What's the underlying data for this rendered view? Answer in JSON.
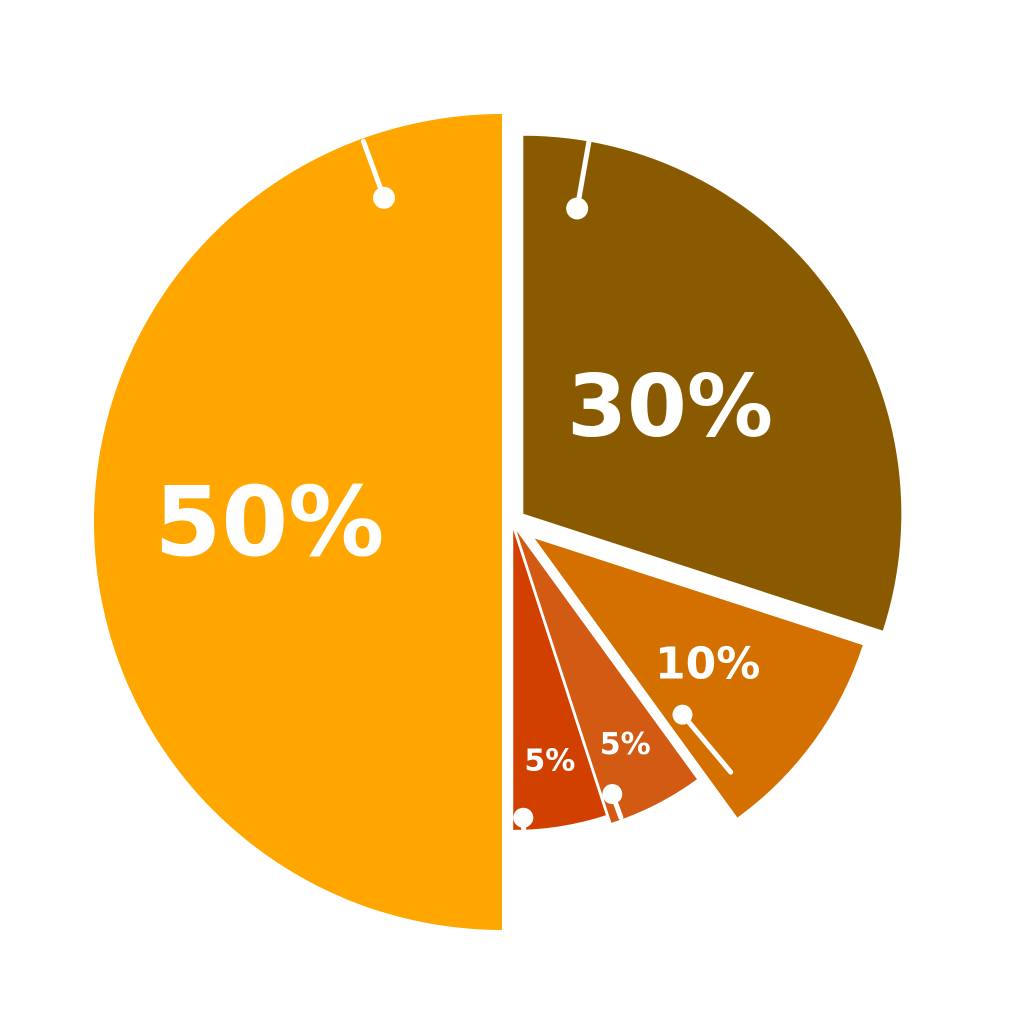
{
  "chart_data": {
    "type": "pie",
    "title": "",
    "slices": [
      {
        "label": "50%",
        "value": 50,
        "color": "#FFA600"
      },
      {
        "label": "30%",
        "value": 30,
        "color": "#8A5A00"
      },
      {
        "label": "10%",
        "value": 10,
        "color": "#D37000"
      },
      {
        "label": "5%",
        "value": 5,
        "color": "#D25A13"
      },
      {
        "label": "5%",
        "value": 5,
        "color": "#D24000"
      }
    ],
    "exploded": true,
    "legend": "none"
  }
}
